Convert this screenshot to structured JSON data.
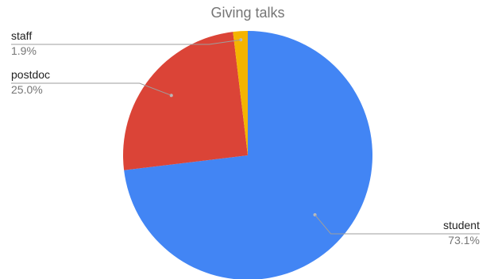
{
  "chart_data": {
    "type": "pie",
    "title": "Giving talks",
    "start_angle_deg": 0,
    "direction": "clockwise",
    "slices": [
      {
        "label": "student",
        "value": 73.1,
        "percent_label": "73.1%",
        "color": "#4285F4"
      },
      {
        "label": "postdoc",
        "value": 25.0,
        "percent_label": "25.0%",
        "color": "#DB4437"
      },
      {
        "label": "staff",
        "value": 1.9,
        "percent_label": "1.9%",
        "color": "#F4B400"
      }
    ]
  }
}
